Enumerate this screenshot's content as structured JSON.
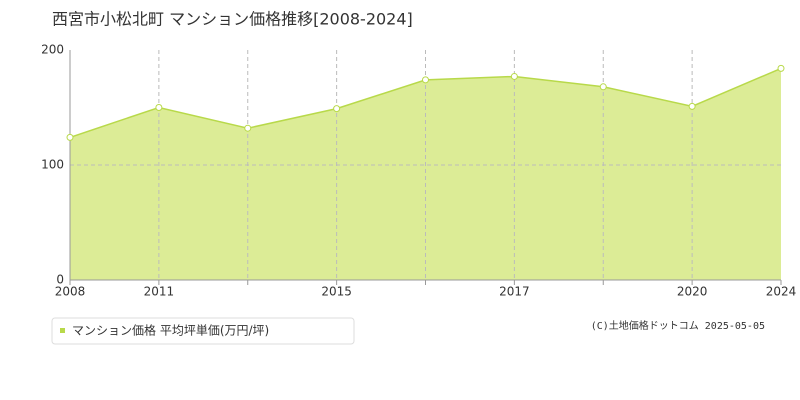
{
  "chart_data": {
    "type": "area",
    "title": "西宮市小松北町 マンション価格推移[2008-2024]",
    "categories": [
      "2008",
      "2011",
      null,
      "2015",
      null,
      "2017",
      null,
      "2020",
      "2024"
    ],
    "series": [
      {
        "name": "マンション価格 平均坪単価(万円/坪)",
        "color": "#b8d94a",
        "values": [
          124,
          150,
          132,
          149,
          174,
          177,
          168,
          151,
          184
        ]
      }
    ],
    "ylim": [
      0,
      200
    ],
    "yticks": [
      0,
      100,
      200
    ],
    "grid": true,
    "annotation": "(C)土地価格ドットコム 2025-05-05"
  }
}
